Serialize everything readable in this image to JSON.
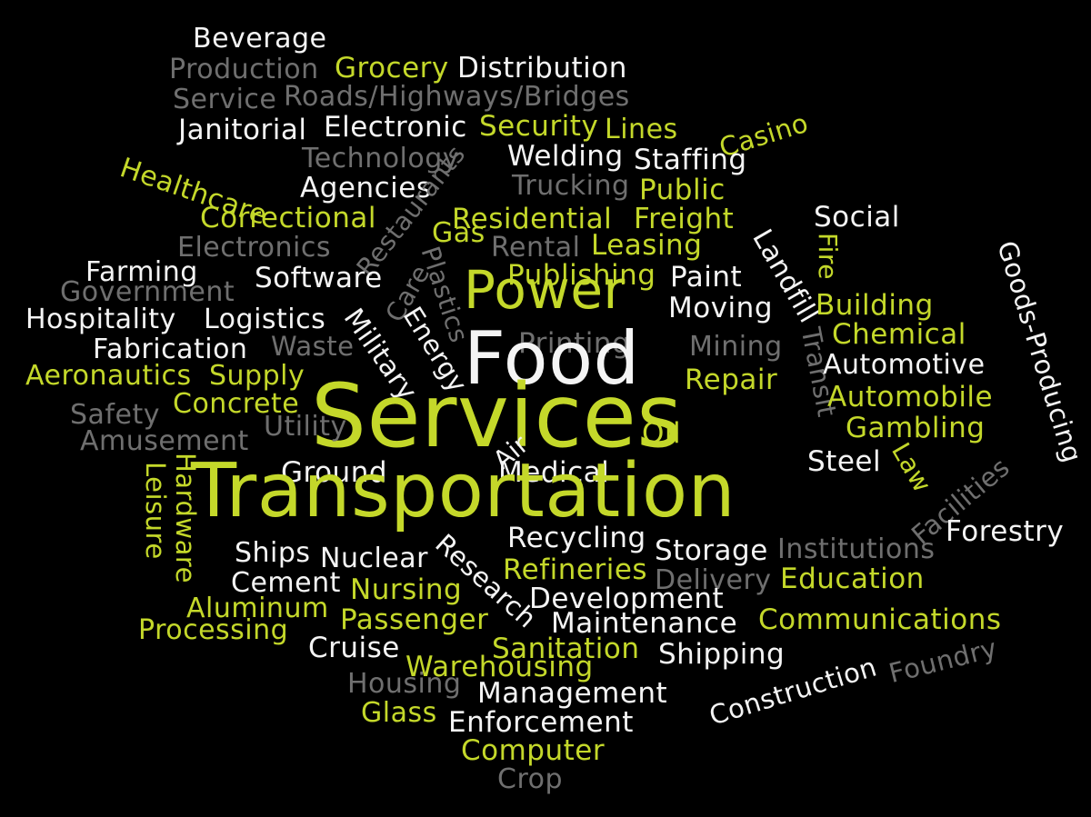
{
  "palette": {
    "background": "#000000",
    "white": "#f4f4f4",
    "lime": "#c4d82a",
    "gray": "#6f6f6f"
  },
  "words": [
    {
      "text": "Beverage",
      "color": "white"
    },
    {
      "text": "Production",
      "color": "gray"
    },
    {
      "text": "Grocery",
      "color": "lime"
    },
    {
      "text": "Distribution",
      "color": "white"
    },
    {
      "text": "Service",
      "color": "gray"
    },
    {
      "text": "Roads/Highways/Bridges",
      "color": "gray"
    },
    {
      "text": "Janitorial",
      "color": "white"
    },
    {
      "text": "Electronic",
      "color": "white"
    },
    {
      "text": "Security",
      "color": "lime"
    },
    {
      "text": "Lines",
      "color": "lime"
    },
    {
      "text": "Casino",
      "color": "lime"
    },
    {
      "text": "Technology",
      "color": "gray"
    },
    {
      "text": "Welding",
      "color": "white"
    },
    {
      "text": "Staffing",
      "color": "white"
    },
    {
      "text": "Healthcare",
      "color": "lime"
    },
    {
      "text": "Agencies",
      "color": "white"
    },
    {
      "text": "Restaurants",
      "color": "gray"
    },
    {
      "text": "Trucking",
      "color": "gray"
    },
    {
      "text": "Public",
      "color": "lime"
    },
    {
      "text": "Correctional",
      "color": "lime"
    },
    {
      "text": "Residential",
      "color": "lime"
    },
    {
      "text": "Freight",
      "color": "lime"
    },
    {
      "text": "Social",
      "color": "white"
    },
    {
      "text": "Electronics",
      "color": "gray"
    },
    {
      "text": "Gas",
      "color": "lime"
    },
    {
      "text": "Rental",
      "color": "gray"
    },
    {
      "text": "Leasing",
      "color": "lime"
    },
    {
      "text": "Landfill",
      "color": "white"
    },
    {
      "text": "Fire",
      "color": "lime"
    },
    {
      "text": "Goods-Producing",
      "color": "white"
    },
    {
      "text": "Farming",
      "color": "white"
    },
    {
      "text": "Care",
      "color": "gray"
    },
    {
      "text": "Plastics",
      "color": "gray"
    },
    {
      "text": "Publishing",
      "color": "lime"
    },
    {
      "text": "Paint",
      "color": "white"
    },
    {
      "text": "Government",
      "color": "gray"
    },
    {
      "text": "Software",
      "color": "white"
    },
    {
      "text": "Power",
      "color": "lime"
    },
    {
      "text": "Building",
      "color": "lime"
    },
    {
      "text": "Moving",
      "color": "white"
    },
    {
      "text": "Hospitality",
      "color": "white"
    },
    {
      "text": "Logistics",
      "color": "white"
    },
    {
      "text": "Military",
      "color": "white"
    },
    {
      "text": "Energy",
      "color": "white"
    },
    {
      "text": "Transit",
      "color": "gray"
    },
    {
      "text": "Chemical",
      "color": "lime"
    },
    {
      "text": "Fabrication",
      "color": "white"
    },
    {
      "text": "Waste",
      "color": "gray"
    },
    {
      "text": "Printing",
      "color": "gray"
    },
    {
      "text": "Mining",
      "color": "gray"
    },
    {
      "text": "Food",
      "color": "white"
    },
    {
      "text": "Automotive",
      "color": "white"
    },
    {
      "text": "Aeronautics",
      "color": "lime"
    },
    {
      "text": "Supply",
      "color": "lime"
    },
    {
      "text": "Repair",
      "color": "lime"
    },
    {
      "text": "Concrete",
      "color": "lime"
    },
    {
      "text": "Automobile",
      "color": "lime"
    },
    {
      "text": "Safety",
      "color": "gray"
    },
    {
      "text": "Services",
      "color": "lime"
    },
    {
      "text": "Utility",
      "color": "gray"
    },
    {
      "text": "Oil",
      "color": "lime"
    },
    {
      "text": "Gambling",
      "color": "lime"
    },
    {
      "text": "Amusement",
      "color": "gray"
    },
    {
      "text": "Air",
      "color": "white"
    },
    {
      "text": "Steel",
      "color": "white"
    },
    {
      "text": "Law",
      "color": "lime"
    },
    {
      "text": "Facilities",
      "color": "gray"
    },
    {
      "text": "Ground",
      "color": "white"
    },
    {
      "text": "Medical",
      "color": "white"
    },
    {
      "text": "Leisure",
      "color": "lime"
    },
    {
      "text": "Hardware",
      "color": "lime"
    },
    {
      "text": "Transportation",
      "color": "lime"
    },
    {
      "text": "Forestry",
      "color": "white"
    },
    {
      "text": "Recycling",
      "color": "white"
    },
    {
      "text": "Research",
      "color": "white"
    },
    {
      "text": "Ships",
      "color": "white"
    },
    {
      "text": "Nuclear",
      "color": "white"
    },
    {
      "text": "Storage",
      "color": "white"
    },
    {
      "text": "Institutions",
      "color": "gray"
    },
    {
      "text": "Refineries",
      "color": "lime"
    },
    {
      "text": "Cement",
      "color": "white"
    },
    {
      "text": "Delivery",
      "color": "gray"
    },
    {
      "text": "Education",
      "color": "lime"
    },
    {
      "text": "Nursing",
      "color": "lime"
    },
    {
      "text": "Development",
      "color": "white"
    },
    {
      "text": "Aluminum",
      "color": "lime"
    },
    {
      "text": "Passenger",
      "color": "lime"
    },
    {
      "text": "Maintenance",
      "color": "white"
    },
    {
      "text": "Communications",
      "color": "lime"
    },
    {
      "text": "Processing",
      "color": "lime"
    },
    {
      "text": "Cruise",
      "color": "white"
    },
    {
      "text": "Sanitation",
      "color": "lime"
    },
    {
      "text": "Shipping",
      "color": "white"
    },
    {
      "text": "Foundry",
      "color": "gray"
    },
    {
      "text": "Warehousing",
      "color": "lime"
    },
    {
      "text": "Construction",
      "color": "white"
    },
    {
      "text": "Housing",
      "color": "gray"
    },
    {
      "text": "Management",
      "color": "white"
    },
    {
      "text": "Glass",
      "color": "lime"
    },
    {
      "text": "Enforcement",
      "color": "white"
    },
    {
      "text": "Computer",
      "color": "lime"
    },
    {
      "text": "Crop",
      "color": "gray"
    }
  ]
}
